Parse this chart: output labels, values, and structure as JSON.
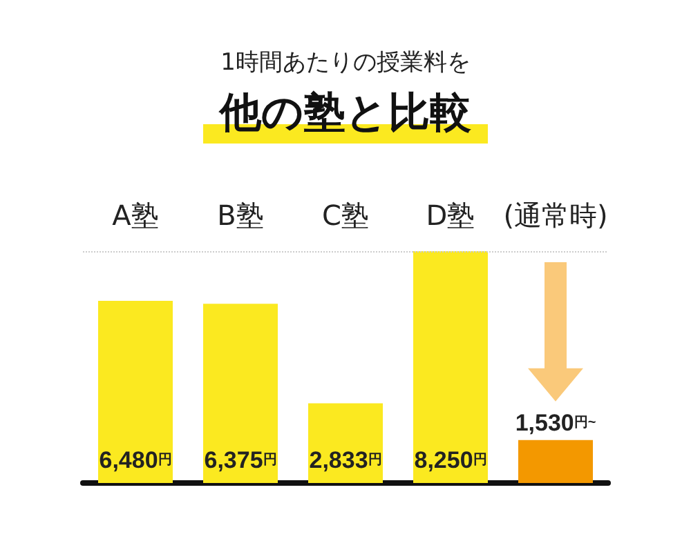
{
  "chart_data": {
    "type": "bar",
    "title": "1時間あたりの授業料を",
    "subtitle": "他の塾と比較",
    "categories": [
      "A塾",
      "B塾",
      "C塾",
      "D塾",
      "(通常時)"
    ],
    "values": [
      6480,
      6375,
      2833,
      8250,
      1530
    ],
    "colors": [
      "#fbe920",
      "#fbe920",
      "#fbe920",
      "#fbe920",
      "#f39800"
    ],
    "value_labels": [
      "6,480円",
      "6,375円",
      "2,833円",
      "8,250円",
      "1,530円~"
    ],
    "ref_lines": [
      {
        "axis": "y",
        "value": 8250,
        "color": "#cccccc",
        "line_style": "dotted"
      }
    ]
  }
}
